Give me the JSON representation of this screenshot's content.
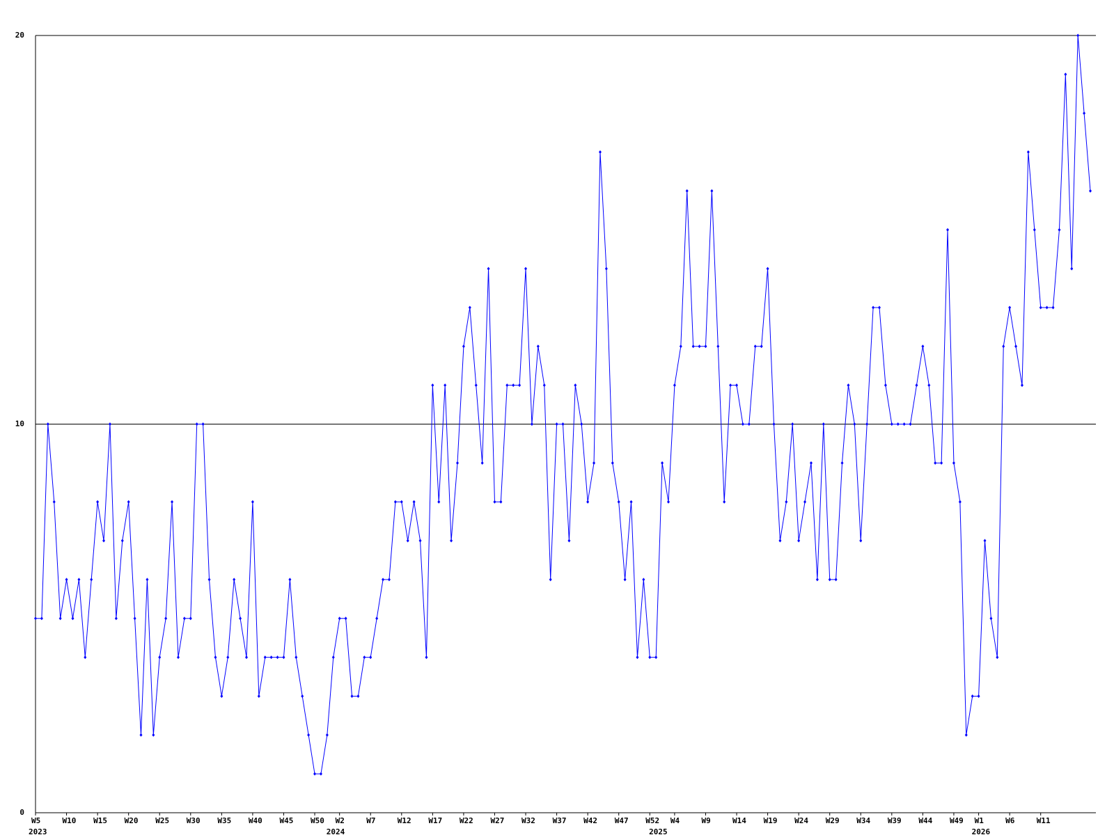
{
  "chart_data": {
    "type": "line",
    "categories": [
      "W5",
      null,
      null,
      null,
      null,
      "W10",
      null,
      null,
      null,
      null,
      "W15",
      null,
      null,
      null,
      null,
      "W20",
      null,
      null,
      null,
      null,
      "W25",
      null,
      null,
      null,
      null,
      "W30",
      null,
      null,
      null,
      null,
      "W35",
      null,
      null,
      null,
      null,
      "W40",
      null,
      null,
      null,
      null,
      "W45",
      null,
      null,
      null,
      null,
      "W50",
      null,
      null,
      null,
      "W2",
      null,
      null,
      null,
      null,
      "W7",
      null,
      null,
      null,
      null,
      "W12",
      null,
      null,
      null,
      null,
      "W17",
      null,
      null,
      null,
      null,
      "W22",
      null,
      null,
      null,
      null,
      "W27",
      null,
      null,
      null,
      null,
      "W32",
      null,
      null,
      null,
      null,
      "W37",
      null,
      null,
      null,
      null,
      "W42",
      null,
      null,
      null,
      null,
      "W47",
      null,
      null,
      null,
      null,
      "W52",
      null,
      null,
      null,
      "W4",
      null,
      null,
      null,
      null,
      "W9",
      null,
      null,
      null,
      null,
      "W14",
      null,
      null,
      null,
      null,
      "W19",
      null,
      null,
      null,
      null,
      "W24",
      null,
      null,
      null,
      null,
      "W29",
      null,
      null,
      null,
      null,
      "W34",
      null,
      null,
      null,
      null,
      "W39",
      null,
      null,
      null,
      null,
      "W44",
      null,
      null,
      null,
      null,
      "W49",
      null,
      null,
      null,
      "W1",
      null,
      null,
      null,
      null,
      "W6",
      null,
      null,
      null,
      null,
      "W11",
      null,
      null,
      null,
      null,
      null,
      null,
      null,
      null
    ],
    "years": [
      "2023",
      null,
      null,
      null,
      null,
      null,
      null,
      null,
      null,
      null,
      null,
      null,
      null,
      null,
      null,
      null,
      null,
      null,
      null,
      null,
      null,
      null,
      null,
      null,
      null,
      null,
      null,
      null,
      null,
      null,
      null,
      null,
      null,
      null,
      null,
      null,
      null,
      null,
      null,
      null,
      null,
      null,
      null,
      null,
      null,
      null,
      null,
      null,
      "2024",
      null,
      null,
      null,
      null,
      null,
      null,
      null,
      null,
      null,
      null,
      null,
      null,
      null,
      null,
      null,
      null,
      null,
      null,
      null,
      null,
      null,
      null,
      null,
      null,
      null,
      null,
      null,
      null,
      null,
      null,
      null,
      null,
      null,
      null,
      null,
      null,
      null,
      null,
      null,
      null,
      null,
      null,
      null,
      null,
      null,
      null,
      null,
      null,
      null,
      null,
      null,
      "2025",
      null,
      null,
      null,
      null,
      null,
      null,
      null,
      null,
      null,
      null,
      null,
      null,
      null,
      null,
      null,
      null,
      null,
      null,
      null,
      null,
      null,
      null,
      null,
      null,
      null,
      null,
      null,
      null,
      null,
      null,
      null,
      null,
      null,
      null,
      null,
      null,
      null,
      null,
      null,
      null,
      null,
      null,
      null,
      null,
      null,
      null,
      null,
      null,
      null,
      null,
      null,
      "2026",
      null,
      null,
      null,
      null,
      null,
      null,
      null,
      null,
      null,
      null,
      null,
      null,
      null,
      null,
      null,
      null,
      null,
      null
    ],
    "series": [
      {
        "color": "#0000ff",
        "values": [
          5,
          5,
          10,
          8,
          5,
          6,
          5,
          6,
          4,
          6,
          8,
          7,
          10,
          5,
          7,
          8,
          5,
          2,
          6,
          2,
          4,
          5,
          8,
          4,
          5,
          5,
          10,
          10,
          6,
          4,
          3,
          4,
          6,
          5,
          4,
          8,
          3,
          4,
          4,
          4,
          4,
          6,
          4,
          3,
          2,
          1,
          1,
          2,
          4,
          5,
          5,
          3,
          3,
          4,
          4,
          5,
          6,
          6,
          8,
          8,
          7,
          8,
          7,
          4,
          11,
          8,
          11,
          7,
          9,
          12,
          13,
          11,
          9,
          14,
          8,
          8,
          11,
          11,
          11,
          14,
          10,
          12,
          11,
          6,
          10,
          10,
          7,
          11,
          10,
          8,
          9,
          17,
          14,
          9,
          8,
          6,
          8,
          4,
          6,
          4,
          4,
          9,
          8,
          11,
          12,
          16,
          12,
          12,
          12,
          16,
          12,
          8,
          11,
          11,
          10,
          10,
          12,
          12,
          14,
          10,
          7,
          8,
          10,
          7,
          8,
          9,
          6,
          10,
          6,
          6,
          9,
          11,
          10,
          7,
          10,
          13,
          13,
          11,
          10,
          10,
          10,
          10,
          11,
          12,
          11,
          9,
          9,
          15,
          9,
          8,
          2,
          3,
          3,
          7,
          5,
          4,
          12,
          13,
          12,
          11,
          17,
          15,
          13,
          13,
          13,
          15,
          19,
          14,
          20,
          18,
          16
        ]
      }
    ],
    "ylim": [
      0,
      20
    ],
    "yticks": [
      0,
      10,
      20
    ],
    "grid": true
  }
}
